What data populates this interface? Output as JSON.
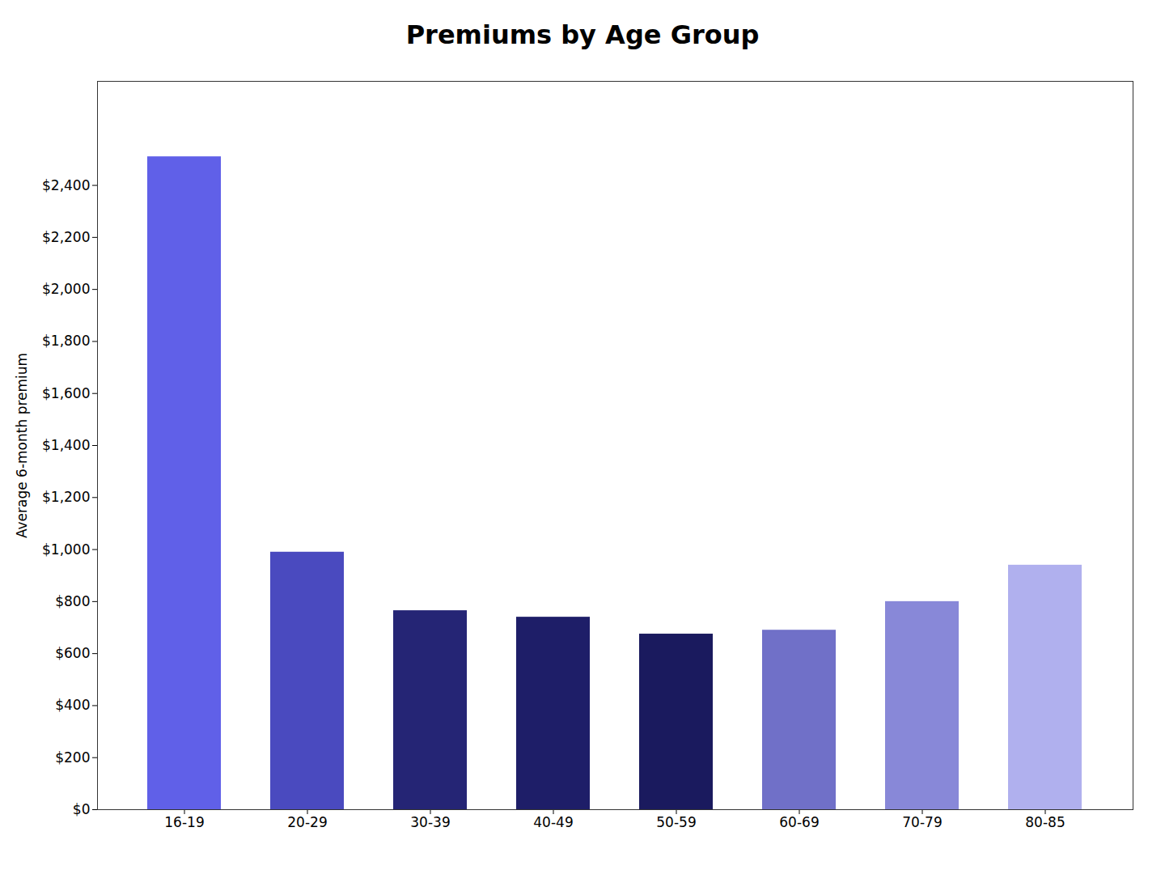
{
  "chart_data": {
    "type": "bar",
    "title": "Premiums by Age Group",
    "ylabel": "Average 6-month premium",
    "categories": [
      "16-19",
      "20-29",
      "30-39",
      "40-49",
      "50-59",
      "60-69",
      "70-79",
      "80-85"
    ],
    "values": [
      2510,
      990,
      765,
      740,
      675,
      690,
      800,
      940
    ],
    "colors": [
      "#6060e8",
      "#4a4abf",
      "#252575",
      "#1e1e68",
      "#1a1a5e",
      "#7070c8",
      "#8888d8",
      "#b0b0ee"
    ],
    "ylim": [
      0,
      2800
    ],
    "yticks": [
      {
        "value": 0,
        "label": "$0"
      },
      {
        "value": 200,
        "label": "$200"
      },
      {
        "value": 400,
        "label": "$400"
      },
      {
        "value": 600,
        "label": "$600"
      },
      {
        "value": 800,
        "label": "$800"
      },
      {
        "value": 1000,
        "label": "$1,000"
      },
      {
        "value": 1200,
        "label": "$1,200"
      },
      {
        "value": 1400,
        "label": "$1,400"
      },
      {
        "value": 1600,
        "label": "$1,600"
      },
      {
        "value": 1800,
        "label": "$1,800"
      },
      {
        "value": 2000,
        "label": "$2,000"
      },
      {
        "value": 2200,
        "label": "$2,200"
      },
      {
        "value": 2400,
        "label": "$2,400"
      }
    ],
    "grid": false
  }
}
